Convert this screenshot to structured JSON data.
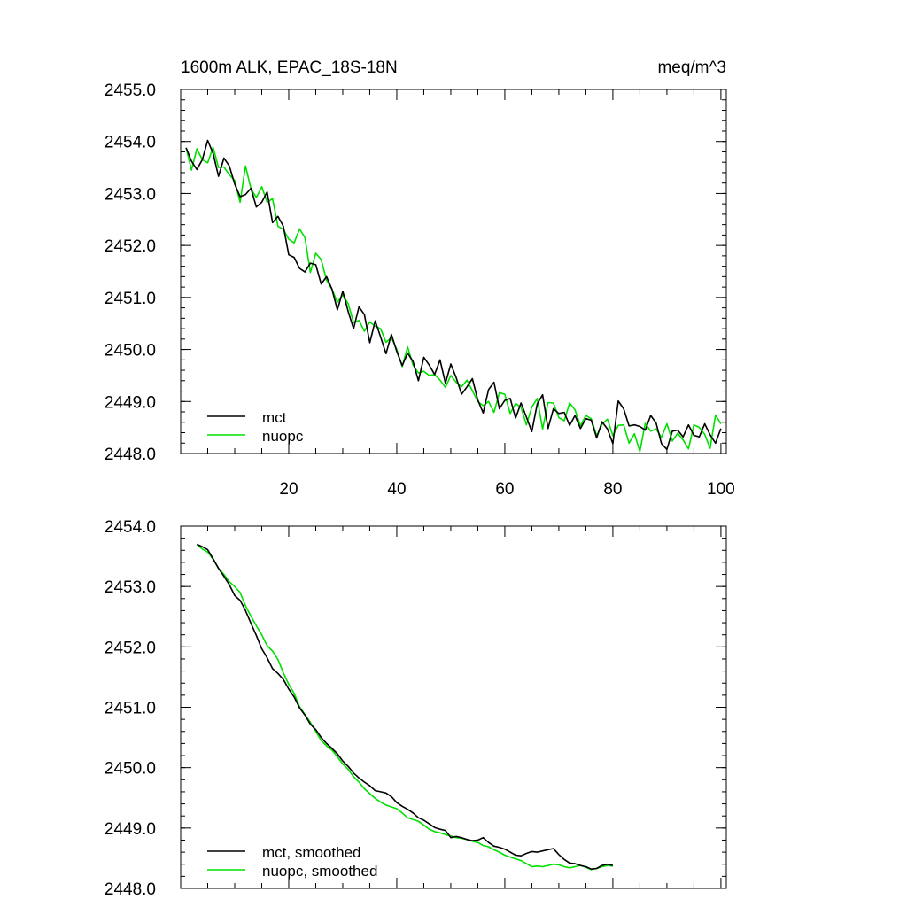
{
  "colors": {
    "mct": "#000000",
    "nuopc": "#00e000"
  },
  "chart_data": [
    {
      "type": "line",
      "title_left": "1600m ALK, EPAC_18S-18N",
      "title_right": "meq/m^3",
      "xlim": [
        0,
        101
      ],
      "ylim": [
        2448.0,
        2455.0
      ],
      "yticks": [
        "2448.0",
        "2449.0",
        "2450.0",
        "2451.0",
        "2452.0",
        "2453.0",
        "2454.0",
        "2455.0"
      ],
      "xticks": [
        "20",
        "40",
        "60",
        "80",
        "100"
      ],
      "legend": [
        "mct",
        "nuopc"
      ],
      "series": [
        {
          "name": "mct",
          "x_start": 1,
          "values": [
            2453.88,
            2453.62,
            2453.46,
            2453.65,
            2454.02,
            2453.77,
            2453.33,
            2453.68,
            2453.53,
            2453.18,
            2452.94,
            2452.98,
            2453.1,
            2452.74,
            2452.83,
            2453.03,
            2452.44,
            2452.56,
            2452.37,
            2451.82,
            2451.77,
            2451.56,
            2451.49,
            2451.66,
            2451.63,
            2451.26,
            2451.4,
            2451.16,
            2450.76,
            2451.12,
            2450.73,
            2450.4,
            2450.82,
            2450.67,
            2450.13,
            2450.55,
            2450.24,
            2449.92,
            2450.29,
            2449.96,
            2449.69,
            2449.93,
            2449.77,
            2449.4,
            2449.85,
            2449.7,
            2449.52,
            2449.8,
            2449.35,
            2449.72,
            2449.46,
            2449.14,
            2449.28,
            2449.44,
            2449.03,
            2448.78,
            2449.23,
            2449.37,
            2448.86,
            2449.02,
            2449.06,
            2448.68,
            2448.97,
            2448.7,
            2448.42,
            2448.95,
            2449.13,
            2448.48,
            2448.86,
            2448.77,
            2448.79,
            2448.54,
            2448.73,
            2448.48,
            2448.67,
            2448.64,
            2448.3,
            2448.61,
            2448.47,
            2448.19,
            2449.01,
            2448.86,
            2448.53,
            2448.55,
            2448.52,
            2448.45,
            2448.73,
            2448.59,
            2448.19,
            2448.08,
            2448.43,
            2448.45,
            2448.32,
            2448.55,
            2448.35,
            2448.32,
            2448.57,
            2448.36,
            2448.2,
            2448.48
          ]
        },
        {
          "name": "nuopc",
          "x_start": 1,
          "values": [
            2453.88,
            2453.45,
            2453.86,
            2453.65,
            2453.59,
            2453.89,
            2453.5,
            2453.51,
            2453.36,
            2453.25,
            2452.83,
            2453.53,
            2453.09,
            2452.92,
            2453.13,
            2452.83,
            2452.9,
            2452.37,
            2452.31,
            2452.12,
            2452.05,
            2452.32,
            2452.15,
            2451.48,
            2451.85,
            2451.73,
            2451.33,
            2451.16,
            2450.91,
            2451.05,
            2450.88,
            2450.52,
            2450.56,
            2450.35,
            2450.53,
            2450.45,
            2450.4,
            2450.14,
            2450.23,
            2450.0,
            2449.67,
            2450.05,
            2449.7,
            2449.55,
            2449.58,
            2449.5,
            2449.52,
            2449.41,
            2449.27,
            2449.5,
            2449.37,
            2449.28,
            2449.41,
            2449.21,
            2449.0,
            2448.92,
            2449.0,
            2448.79,
            2449.17,
            2449.14,
            2448.77,
            2448.96,
            2448.89,
            2448.55,
            2448.89,
            2449.06,
            2448.47,
            2448.98,
            2448.97,
            2448.69,
            2448.63,
            2448.97,
            2448.84,
            2448.53,
            2448.73,
            2448.67,
            2448.34,
            2448.56,
            2448.66,
            2448.34,
            2448.54,
            2448.55,
            2448.2,
            2448.38,
            2448.04,
            2448.58,
            2448.43,
            2448.47,
            2448.31,
            2448.57,
            2448.24,
            2448.39,
            2448.26,
            2448.09,
            2448.55,
            2448.5,
            2448.37,
            2448.1,
            2448.74,
            2448.57
          ]
        }
      ]
    },
    {
      "type": "line",
      "xlim": [
        0,
        101
      ],
      "ylim": [
        2448.0,
        2454.0
      ],
      "yticks": [
        "2448.0",
        "2449.0",
        "2450.0",
        "2451.0",
        "2452.0",
        "2453.0",
        "2454.0"
      ],
      "xticks": [],
      "legend": [
        "mct, smoothed",
        "nuopc, smoothed"
      ],
      "series": [
        {
          "name": "mct, smoothed",
          "x_start": 3,
          "values": [
            2453.7,
            2453.66,
            2453.61,
            2453.46,
            2453.3,
            2453.17,
            2453.03,
            2452.85,
            2452.77,
            2452.6,
            2452.39,
            2452.19,
            2451.97,
            2451.82,
            2451.64,
            2451.56,
            2451.46,
            2451.3,
            2451.17,
            2450.99,
            2450.87,
            2450.72,
            2450.63,
            2450.5,
            2450.4,
            2450.32,
            2450.23,
            2450.11,
            2450.02,
            2449.91,
            2449.83,
            2449.76,
            2449.7,
            2449.62,
            2449.6,
            2449.58,
            2449.52,
            2449.42,
            2449.36,
            2449.31,
            2449.25,
            2449.17,
            2449.13,
            2449.07,
            2449.01,
            2448.98,
            2448.96,
            2448.84,
            2448.86,
            2448.84,
            2448.81,
            2448.79,
            2448.8,
            2448.84,
            2448.76,
            2448.7,
            2448.68,
            2448.65,
            2448.6,
            2448.55,
            2448.54,
            2448.58,
            2448.61,
            2448.6,
            2448.62,
            2448.64,
            2448.66,
            2448.56,
            2448.48,
            2448.42,
            2448.41,
            2448.38,
            2448.36,
            2448.32,
            2448.33,
            2448.38,
            2448.4,
            2448.38
          ]
        },
        {
          "name": "nuopc, smoothed",
          "x_start": 3,
          "values": [
            2453.7,
            2453.62,
            2453.57,
            2453.45,
            2453.3,
            2453.2,
            2453.08,
            2453.0,
            2452.9,
            2452.68,
            2452.51,
            2452.35,
            2452.2,
            2452.02,
            2451.93,
            2451.79,
            2451.57,
            2451.38,
            2451.23,
            2451.01,
            2450.88,
            2450.75,
            2450.6,
            2450.45,
            2450.36,
            2450.29,
            2450.18,
            2450.06,
            2449.97,
            2449.85,
            2449.76,
            2449.65,
            2449.57,
            2449.49,
            2449.43,
            2449.38,
            2449.35,
            2449.32,
            2449.25,
            2449.17,
            2449.14,
            2449.11,
            2449.05,
            2448.98,
            2448.94,
            2448.92,
            2448.89,
            2448.87,
            2448.84,
            2448.83,
            2448.81,
            2448.78,
            2448.76,
            2448.71,
            2448.69,
            2448.64,
            2448.6,
            2448.55,
            2448.52,
            2448.49,
            2448.46,
            2448.41,
            2448.36,
            2448.37,
            2448.36,
            2448.38,
            2448.4,
            2448.39,
            2448.36,
            2448.34,
            2448.36,
            2448.38,
            2448.35,
            2448.31,
            2448.33,
            2448.36,
            2448.38,
            2448.37
          ]
        }
      ]
    }
  ]
}
